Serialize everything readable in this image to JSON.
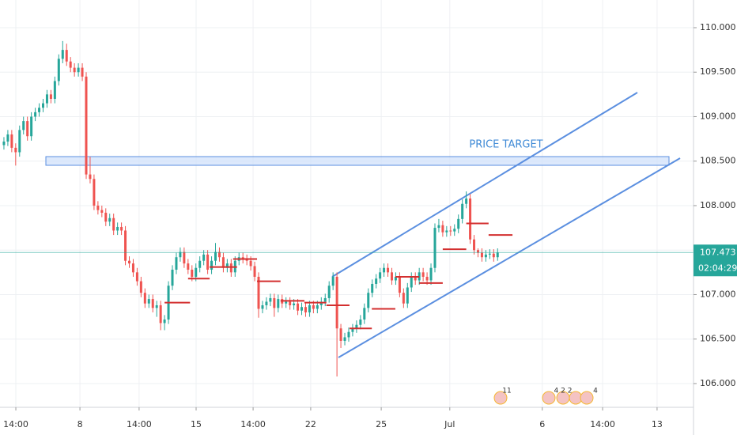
{
  "chart_data": {
    "type": "candlestick",
    "title": "PRICE TARGET",
    "x": [
      1,
      2,
      3,
      4,
      5,
      6,
      7,
      8,
      9,
      10,
      11,
      12,
      13,
      14,
      15,
      16,
      17,
      18,
      19,
      20,
      21,
      22,
      23,
      24,
      25,
      26,
      27,
      28,
      29,
      30,
      31,
      32,
      33,
      34,
      35,
      36,
      37,
      38,
      39,
      40,
      41,
      42,
      43,
      44,
      45,
      46,
      47,
      48,
      49,
      50,
      51,
      52,
      53,
      54,
      55,
      56,
      57,
      58,
      59,
      60,
      61,
      62,
      63,
      64,
      65,
      66,
      67,
      68,
      69,
      70,
      71,
      72,
      73,
      74,
      75,
      76,
      77,
      78,
      79,
      80,
      81,
      82,
      83,
      84,
      85,
      86,
      87,
      88,
      89,
      90,
      91,
      92,
      93,
      94,
      95,
      96,
      97,
      98,
      99,
      100,
      101,
      102,
      103,
      104,
      105,
      106,
      107,
      108,
      109,
      110,
      111,
      112,
      113,
      114,
      115,
      116,
      117,
      118,
      119,
      120,
      121,
      122,
      123,
      124,
      125,
      126,
      127
    ],
    "open": [
      108.68,
      108.72,
      108.8,
      108.65,
      108.6,
      108.85,
      108.95,
      108.78,
      109.0,
      109.05,
      109.1,
      109.15,
      109.25,
      109.2,
      109.4,
      109.65,
      109.75,
      109.62,
      109.55,
      109.5,
      109.55,
      109.45,
      108.35,
      108.3,
      108.0,
      107.95,
      107.92,
      107.82,
      107.86,
      107.72,
      107.76,
      107.72,
      107.38,
      107.35,
      107.25,
      107.15,
      107.02,
      106.9,
      106.95,
      106.85,
      106.88,
      106.68,
      106.72,
      107.1,
      107.28,
      107.42,
      107.48,
      107.35,
      107.28,
      107.2,
      107.3,
      107.38,
      107.45,
      107.28,
      107.38,
      107.48,
      107.42,
      107.3,
      107.35,
      107.25,
      107.38,
      107.42,
      107.4,
      107.38,
      107.32,
      107.2,
      106.84,
      106.88,
      106.92,
      106.96,
      106.85,
      106.95,
      106.9,
      106.92,
      106.88,
      106.9,
      106.82,
      106.86,
      106.8,
      106.88,
      106.84,
      106.88,
      106.92,
      106.96,
      107.1,
      107.2,
      106.62,
      106.48,
      106.52,
      106.58,
      106.62,
      106.66,
      106.72,
      106.85,
      107.02,
      107.12,
      107.18,
      107.25,
      107.3,
      107.25,
      107.16,
      107.2,
      107.02,
      106.9,
      107.08,
      107.2,
      107.16,
      107.25,
      107.2,
      107.16,
      107.3,
      107.75,
      107.78,
      107.7,
      107.72,
      107.71,
      107.74,
      107.85,
      108.02,
      108.08,
      107.62,
      107.5,
      107.47,
      107.42,
      107.45,
      107.46,
      107.42
    ],
    "high": [
      108.77,
      108.85,
      108.85,
      108.7,
      108.9,
      109.0,
      109.0,
      109.05,
      109.1,
      109.15,
      109.2,
      109.3,
      109.3,
      109.45,
      109.7,
      109.85,
      109.82,
      109.67,
      109.6,
      109.6,
      109.6,
      109.5,
      108.55,
      108.35,
      108.05,
      108.0,
      107.97,
      107.91,
      107.91,
      107.81,
      107.81,
      107.77,
      107.43,
      107.4,
      107.3,
      107.2,
      107.07,
      107.0,
      107.0,
      106.93,
      106.93,
      106.77,
      107.15,
      107.33,
      107.47,
      107.53,
      107.53,
      107.4,
      107.33,
      107.35,
      107.43,
      107.5,
      107.5,
      107.43,
      107.58,
      107.53,
      107.47,
      107.4,
      107.4,
      107.43,
      107.47,
      107.47,
      107.45,
      107.43,
      107.37,
      107.25,
      106.93,
      106.97,
      107.01,
      107.01,
      107.0,
      107.0,
      106.97,
      106.97,
      106.95,
      106.95,
      106.91,
      106.91,
      106.93,
      106.93,
      106.93,
      106.97,
      107.01,
      107.15,
      107.25,
      107.25,
      106.67,
      106.57,
      106.63,
      106.67,
      106.71,
      106.77,
      106.9,
      107.07,
      107.17,
      107.23,
      107.3,
      107.35,
      107.35,
      107.3,
      107.25,
      107.25,
      107.07,
      107.13,
      107.25,
      107.25,
      107.3,
      107.3,
      107.25,
      107.35,
      107.8,
      107.85,
      107.83,
      107.77,
      107.77,
      107.79,
      107.9,
      108.07,
      108.16,
      108.13,
      107.67,
      107.52,
      107.52,
      107.5,
      107.51,
      107.51,
      107.52
    ],
    "low": [
      108.63,
      108.67,
      108.6,
      108.45,
      108.55,
      108.8,
      108.73,
      108.73,
      108.95,
      109.0,
      109.05,
      109.1,
      109.15,
      109.15,
      109.35,
      109.6,
      109.57,
      109.5,
      109.45,
      109.45,
      109.4,
      108.3,
      108.25,
      107.95,
      107.9,
      107.87,
      107.77,
      107.77,
      107.67,
      107.67,
      107.67,
      107.33,
      107.3,
      107.2,
      107.1,
      106.97,
      106.85,
      106.85,
      106.8,
      106.75,
      106.6,
      106.6,
      106.67,
      107.05,
      107.23,
      107.37,
      107.3,
      107.23,
      107.15,
      107.15,
      107.25,
      107.33,
      107.23,
      107.23,
      107.33,
      107.37,
      107.25,
      107.25,
      107.2,
      107.2,
      107.33,
      107.35,
      107.33,
      107.27,
      107.15,
      106.74,
      106.79,
      106.83,
      106.87,
      106.75,
      106.8,
      106.85,
      106.85,
      106.83,
      106.83,
      106.77,
      106.77,
      106.75,
      106.75,
      106.79,
      106.79,
      106.83,
      106.87,
      106.91,
      107.05,
      106.08,
      106.4,
      106.43,
      106.47,
      106.53,
      106.57,
      106.61,
      106.67,
      106.8,
      106.97,
      107.07,
      107.13,
      107.2,
      107.2,
      107.11,
      107.11,
      106.97,
      106.85,
      106.85,
      107.03,
      107.11,
      107.11,
      107.15,
      107.11,
      107.11,
      107.25,
      107.7,
      107.65,
      107.65,
      107.66,
      107.66,
      107.69,
      107.8,
      107.97,
      107.57,
      107.45,
      107.42,
      107.37,
      107.37,
      107.4,
      107.37,
      107.38
    ],
    "close": [
      108.72,
      108.8,
      108.65,
      108.6,
      108.85,
      108.95,
      108.78,
      109.0,
      109.05,
      109.1,
      109.15,
      109.25,
      109.2,
      109.4,
      109.65,
      109.75,
      109.62,
      109.55,
      109.5,
      109.55,
      109.45,
      108.35,
      108.3,
      108.0,
      107.95,
      107.92,
      107.82,
      107.86,
      107.72,
      107.76,
      107.72,
      107.38,
      107.35,
      107.25,
      107.15,
      107.02,
      106.9,
      106.95,
      106.85,
      106.88,
      106.68,
      106.72,
      107.1,
      107.28,
      107.42,
      107.48,
      107.35,
      107.28,
      107.2,
      107.3,
      107.38,
      107.45,
      107.28,
      107.38,
      107.48,
      107.42,
      107.3,
      107.35,
      107.25,
      107.38,
      107.42,
      107.4,
      107.38,
      107.32,
      107.2,
      106.84,
      106.88,
      106.92,
      106.96,
      106.85,
      106.95,
      106.9,
      106.92,
      106.88,
      106.9,
      106.82,
      106.86,
      106.8,
      106.88,
      106.84,
      106.88,
      106.92,
      106.96,
      107.1,
      107.2,
      106.62,
      106.48,
      106.52,
      106.58,
      106.62,
      106.66,
      106.72,
      106.85,
      107.02,
      107.12,
      107.18,
      107.25,
      107.3,
      107.25,
      107.16,
      107.2,
      107.02,
      106.9,
      107.08,
      107.2,
      107.16,
      107.25,
      107.2,
      107.16,
      107.3,
      107.75,
      107.78,
      107.7,
      107.72,
      107.71,
      107.74,
      107.85,
      108.02,
      108.08,
      107.62,
      107.5,
      107.47,
      107.42,
      107.45,
      107.46,
      107.42,
      107.473
    ],
    "up_color": "#26a69a",
    "down_color": "#ef5350",
    "levels": {
      "color": "#d32f2f",
      "x_start": [
        42,
        48,
        53.5,
        59.5,
        65.6,
        71.6,
        77.7,
        83.3,
        89.2,
        94.9,
        100.9,
        107,
        113,
        119,
        124.7
      ],
      "x_end": [
        48.5,
        53.5,
        60.5,
        65.6,
        71.6,
        77.7,
        83.3,
        89.2,
        94.9,
        100.9,
        107,
        113,
        119,
        124.7,
        130.8
      ],
      "values": [
        106.91,
        107.18,
        107.31,
        107.4,
        107.15,
        106.93,
        106.91,
        106.88,
        106.62,
        106.84,
        107.2,
        107.13,
        107.51,
        107.8,
        107.67
      ]
    },
    "last_price": {
      "value": 107.473,
      "label": "107.473"
    },
    "countdown": "02:04:29",
    "xlim": [
      0,
      177
    ],
    "xticks": [
      {
        "value": 4.04,
        "label": "14:00"
      },
      {
        "value": 20.4,
        "label": "8"
      },
      {
        "value": 35.5,
        "label": "14:00"
      },
      {
        "value": 50.05,
        "label": "15"
      },
      {
        "value": 64.6,
        "label": "14:00"
      },
      {
        "value": 79.3,
        "label": "22"
      },
      {
        "value": 97.3,
        "label": "25"
      },
      {
        "value": 114.8,
        "label": "Jul"
      },
      {
        "value": 138.4,
        "label": "6"
      },
      {
        "value": 153.8,
        "label": "14:00"
      },
      {
        "value": 167.7,
        "label": "13"
      }
    ],
    "ylim": [
      105.733,
      110.311
    ],
    "yticks": [
      {
        "value": 106,
        "label": "106.000"
      },
      {
        "value": 106.5,
        "label": "106.500"
      },
      {
        "value": 107,
        "label": "107.000"
      },
      {
        "value": 107.5,
        "label": "107.500"
      },
      {
        "value": 108,
        "label": "108.000"
      },
      {
        "value": 108.5,
        "label": "108.500"
      },
      {
        "value": 109,
        "label": "109.000"
      },
      {
        "value": 109.5,
        "label": "109.500"
      },
      {
        "value": 110,
        "label": "110.000"
      }
    ],
    "grid": true,
    "events": [
      "11",
      "4 2 2",
      "4"
    ]
  }
}
